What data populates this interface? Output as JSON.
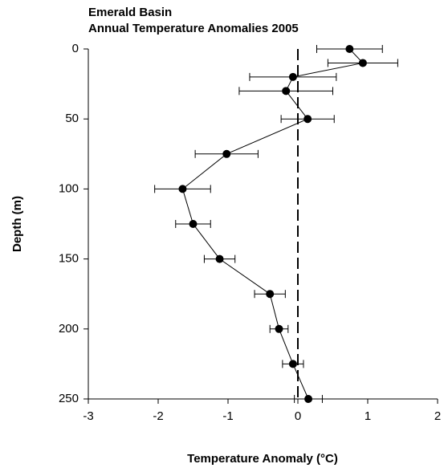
{
  "chart_data": {
    "type": "profile",
    "title": [
      "Emerald Basin",
      "Annual Temperature Anomalies 2005"
    ],
    "x_label": "Temperature Anomaly (°C)",
    "y_label": "Depth (m)",
    "depth": [
      0,
      10,
      20,
      30,
      50,
      75,
      100,
      125,
      150,
      175,
      200,
      225,
      250
    ],
    "values": [
      0.74,
      0.93,
      -0.07,
      -0.17,
      0.14,
      -1.02,
      -1.65,
      -1.5,
      -1.12,
      -0.4,
      -0.27,
      -0.07,
      0.15
    ],
    "errors": [
      0.47,
      0.5,
      0.62,
      0.67,
      0.38,
      0.45,
      0.4,
      0.25,
      0.22,
      0.22,
      0.13,
      0.15,
      0.2
    ],
    "color": "#000000",
    "reference_line": 0,
    "xlim": [
      -3,
      2
    ],
    "xticks": [
      -3,
      -2,
      -1,
      0,
      1,
      2
    ],
    "ylim": [
      0,
      250
    ],
    "yticks": [
      0,
      50,
      100,
      150,
      200,
      250
    ],
    "y_inverted": true
  }
}
